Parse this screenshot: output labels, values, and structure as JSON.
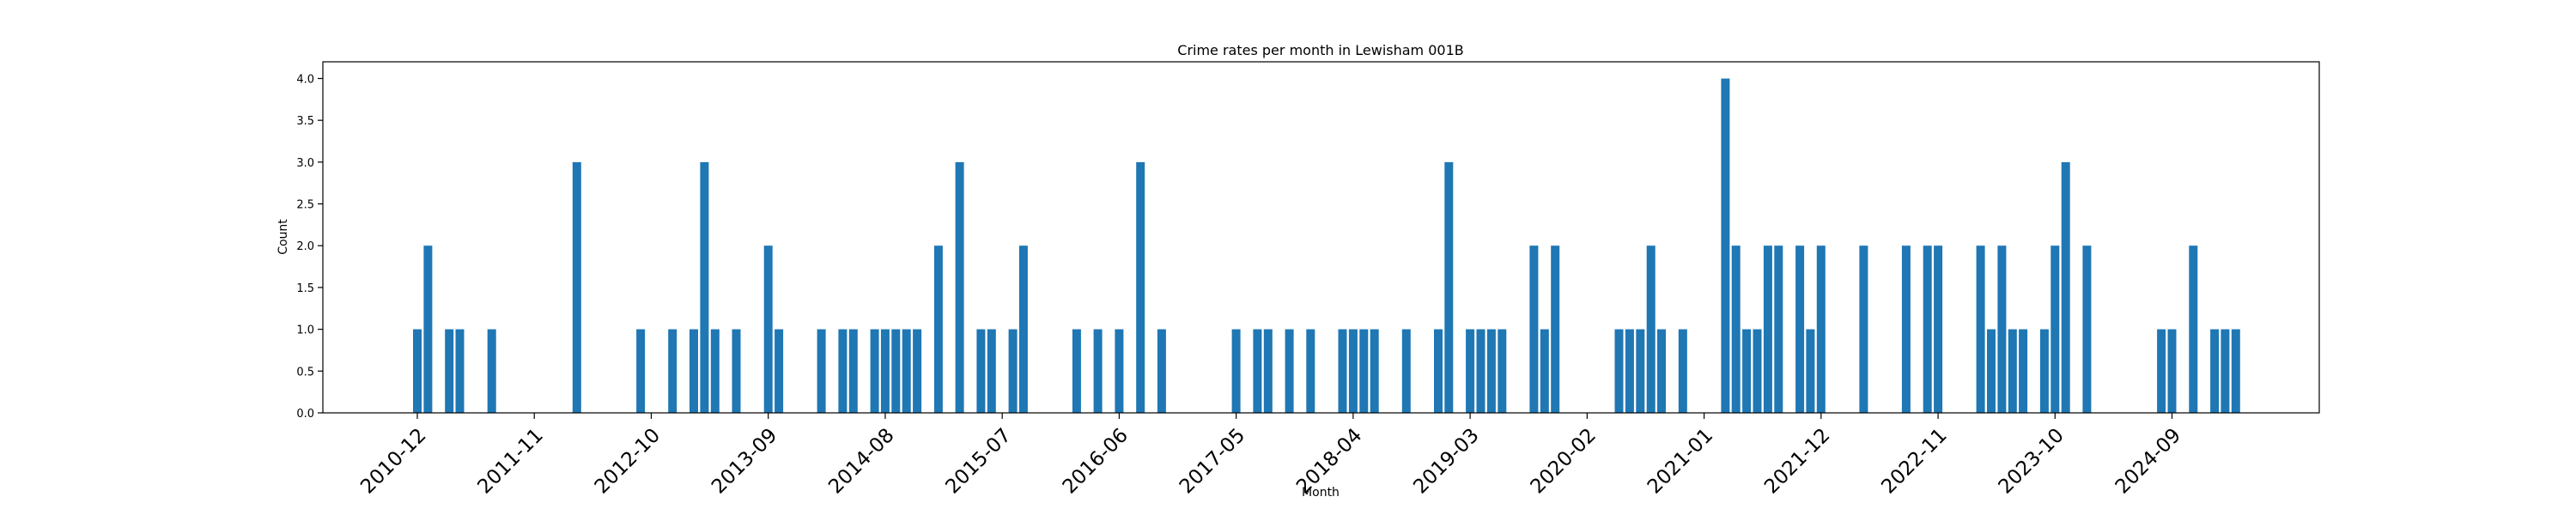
{
  "chart_data": {
    "type": "bar",
    "title": "Crime rates per month in Lewisham 001B",
    "xlabel": "Month",
    "ylabel": "Count",
    "ylim": [
      0,
      4.2
    ],
    "yticks": [
      "0.0",
      "0.5",
      "1.0",
      "1.5",
      "2.0",
      "2.5",
      "3.0",
      "3.5",
      "4.0"
    ],
    "xtick_labels": [
      "2010-12",
      "2011-11",
      "2012-10",
      "2013-09",
      "2014-08",
      "2015-07",
      "2016-06",
      "2017-05",
      "2018-04",
      "2019-03",
      "2020-02",
      "2021-01",
      "2021-12",
      "2022-11",
      "2023-10",
      "2024-09"
    ],
    "grid": false,
    "color": "#1f77b4",
    "data": [
      [
        "2010-12",
        1
      ],
      [
        "2011-01",
        2
      ],
      [
        "2011-03",
        1
      ],
      [
        "2011-04",
        1
      ],
      [
        "2011-07",
        1
      ],
      [
        "2012-03",
        3
      ],
      [
        "2012-09",
        1
      ],
      [
        "2012-12",
        1
      ],
      [
        "2013-02",
        1
      ],
      [
        "2013-03",
        3
      ],
      [
        "2013-04",
        1
      ],
      [
        "2013-06",
        1
      ],
      [
        "2013-09",
        2
      ],
      [
        "2013-10",
        1
      ],
      [
        "2014-02",
        1
      ],
      [
        "2014-04",
        1
      ],
      [
        "2014-05",
        1
      ],
      [
        "2014-07",
        1
      ],
      [
        "2014-08",
        1
      ],
      [
        "2014-09",
        1
      ],
      [
        "2014-10",
        1
      ],
      [
        "2014-11",
        1
      ],
      [
        "2015-01",
        2
      ],
      [
        "2015-03",
        3
      ],
      [
        "2015-05",
        1
      ],
      [
        "2015-06",
        1
      ],
      [
        "2015-08",
        1
      ],
      [
        "2015-09",
        2
      ],
      [
        "2016-02",
        1
      ],
      [
        "2016-04",
        1
      ],
      [
        "2016-06",
        1
      ],
      [
        "2016-08",
        3
      ],
      [
        "2016-10",
        1
      ],
      [
        "2017-05",
        1
      ],
      [
        "2017-07",
        1
      ],
      [
        "2017-08",
        1
      ],
      [
        "2017-10",
        1
      ],
      [
        "2017-12",
        1
      ],
      [
        "2018-03",
        1
      ],
      [
        "2018-04",
        1
      ],
      [
        "2018-05",
        1
      ],
      [
        "2018-06",
        1
      ],
      [
        "2018-09",
        1
      ],
      [
        "2018-12",
        1
      ],
      [
        "2019-01",
        3
      ],
      [
        "2019-03",
        1
      ],
      [
        "2019-04",
        1
      ],
      [
        "2019-05",
        1
      ],
      [
        "2019-06",
        1
      ],
      [
        "2019-09",
        2
      ],
      [
        "2019-10",
        1
      ],
      [
        "2019-11",
        2
      ],
      [
        "2020-05",
        1
      ],
      [
        "2020-06",
        1
      ],
      [
        "2020-07",
        1
      ],
      [
        "2020-08",
        2
      ],
      [
        "2020-09",
        1
      ],
      [
        "2020-11",
        1
      ],
      [
        "2021-03",
        4
      ],
      [
        "2021-04",
        2
      ],
      [
        "2021-05",
        1
      ],
      [
        "2021-06",
        1
      ],
      [
        "2021-07",
        2
      ],
      [
        "2021-08",
        2
      ],
      [
        "2021-10",
        2
      ],
      [
        "2021-11",
        1
      ],
      [
        "2021-12",
        2
      ],
      [
        "2022-04",
        2
      ],
      [
        "2022-08",
        2
      ],
      [
        "2022-10",
        2
      ],
      [
        "2022-11",
        2
      ],
      [
        "2023-03",
        2
      ],
      [
        "2023-04",
        1
      ],
      [
        "2023-05",
        2
      ],
      [
        "2023-06",
        1
      ],
      [
        "2023-07",
        1
      ],
      [
        "2023-09",
        1
      ],
      [
        "2023-10",
        2
      ],
      [
        "2023-11",
        3
      ],
      [
        "2024-01",
        2
      ],
      [
        "2024-08",
        1
      ],
      [
        "2024-09",
        1
      ],
      [
        "2024-11",
        2
      ],
      [
        "2025-01",
        1
      ],
      [
        "2025-02",
        1
      ],
      [
        "2025-03",
        1
      ]
    ]
  }
}
